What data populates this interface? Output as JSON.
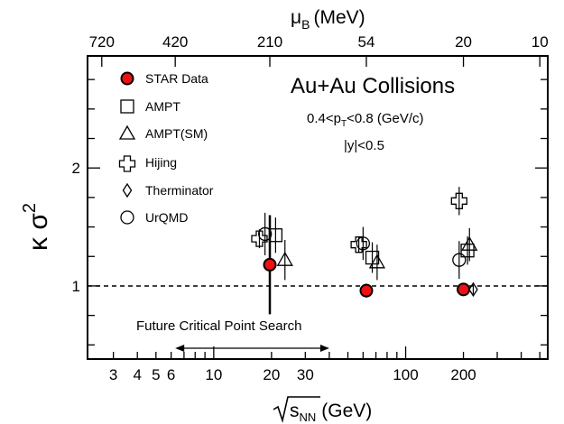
{
  "chart_data": {
    "type": "scatter",
    "title": "",
    "x_axis": {
      "label": "(GeV)",
      "label_symbol": "s",
      "label_sub": "NN",
      "scale": "log",
      "range": [
        2.2,
        550
      ],
      "ticks": [
        {
          "value": 3,
          "label": "3"
        },
        {
          "value": 4,
          "label": "4"
        },
        {
          "value": 5,
          "label": "5"
        },
        {
          "value": 6,
          "label": "6"
        },
        {
          "value": 10,
          "label": "10"
        },
        {
          "value": 20,
          "label": "20"
        },
        {
          "value": 30,
          "label": "30"
        },
        {
          "value": 100,
          "label": "100"
        },
        {
          "value": 200,
          "label": "200"
        }
      ]
    },
    "top_axis": {
      "label": "(MeV)",
      "label_symbol": "μ",
      "label_sub": "B",
      "ticks": [
        {
          "value": 2.61,
          "label": "720"
        },
        {
          "value": 6.3,
          "label": "420"
        },
        {
          "value": 19.6,
          "label": "210"
        },
        {
          "value": 62.4,
          "label": "54"
        },
        {
          "value": 200,
          "label": "20"
        },
        {
          "value": 500,
          "label": "10"
        }
      ]
    },
    "y_axis": {
      "label_symbol": "κ σ",
      "label_sup": "2",
      "range": [
        0.38,
        2.95
      ],
      "ticks": [
        {
          "value": 1,
          "label": "1"
        },
        {
          "value": 2,
          "label": "2"
        }
      ]
    },
    "reference_line": {
      "y": 1,
      "style": "dashed"
    },
    "annotations": {
      "system": "Au+Au Collisions",
      "pt_prefix": "0.4<p",
      "pt_sub": "T",
      "pt_suffix": "<0.8 (GeV/c)",
      "rapidity": "|y|<0.5",
      "search_label": "Future Critical Point Search",
      "search_range": [
        6.3,
        40
      ]
    },
    "series": [
      {
        "name": "STAR Data",
        "marker": "filled-circle",
        "color": "#ee1111",
        "points": [
          {
            "x": 19.6,
            "y": 1.18,
            "err": 0.42
          },
          {
            "x": 62.4,
            "y": 0.96,
            "err": 0.02
          },
          {
            "x": 200,
            "y": 0.97,
            "err": 0.03
          }
        ]
      },
      {
        "name": "AMPT",
        "marker": "square",
        "points": [
          {
            "x": 21.0,
            "y": 1.43,
            "err": 0.15
          },
          {
            "x": 67.0,
            "y": 1.24,
            "err": 0.13
          },
          {
            "x": 210,
            "y": 1.3,
            "err": 0.12
          }
        ]
      },
      {
        "name": "AMPT(SM)",
        "marker": "triangle",
        "points": [
          {
            "x": 23.5,
            "y": 1.22,
            "err": 0.17
          },
          {
            "x": 71.0,
            "y": 1.2,
            "err": 0.15
          },
          {
            "x": 215,
            "y": 1.35,
            "err": 0.14
          }
        ]
      },
      {
        "name": "Hijing",
        "marker": "cross",
        "points": [
          {
            "x": 17.3,
            "y": 1.4,
            "err": 0.08
          },
          {
            "x": 57.0,
            "y": 1.35,
            "err": 0.07
          },
          {
            "x": 190,
            "y": 1.72,
            "err": 0.12
          }
        ]
      },
      {
        "name": "Therminator",
        "marker": "diamond",
        "points": [
          {
            "x": 62.4,
            "y": 0.96,
            "err": 0.0
          },
          {
            "x": 225,
            "y": 0.97,
            "err": 0.04
          }
        ]
      },
      {
        "name": "UrQMD",
        "marker": "open-circle",
        "points": [
          {
            "x": 18.5,
            "y": 1.44,
            "err": 0.18
          },
          {
            "x": 60.0,
            "y": 1.36,
            "err": 0.14
          },
          {
            "x": 190,
            "y": 1.22,
            "err": 0.16
          }
        ]
      }
    ],
    "legend_position": "top-left"
  }
}
